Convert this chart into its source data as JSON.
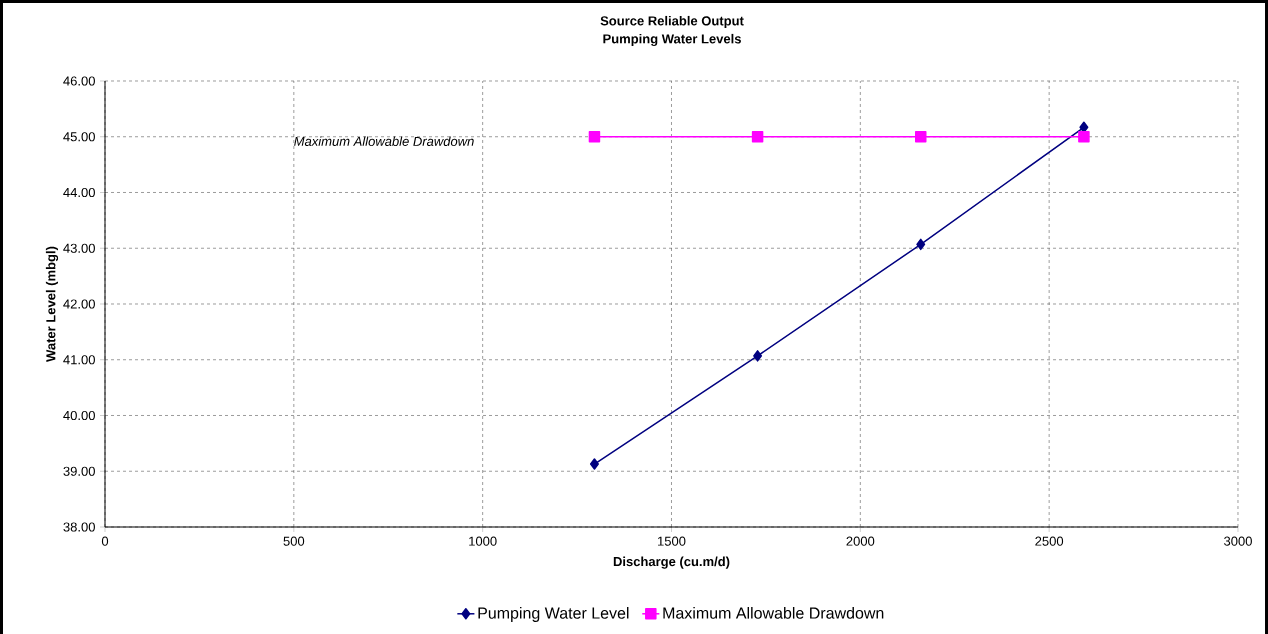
{
  "chart_data": {
    "type": "line",
    "title": "Source Reliable Output",
    "subtitle": "Pumping Water Levels",
    "xlabel": "Discharge (cu.m/d)",
    "ylabel": "Water Level (mbgl)",
    "x": [
      1296,
      1728,
      2160,
      2592
    ],
    "series": [
      {
        "name": "Pumping Water Level",
        "color": "#000080",
        "marker": "diamond",
        "values": [
          39.13,
          41.07,
          43.07,
          45.17
        ]
      },
      {
        "name": "Maximum Allowable Drawdown",
        "color": "#ff00ff",
        "marker": "square",
        "values": [
          45,
          45,
          45,
          45
        ]
      }
    ],
    "annotations": [
      "Maximum Allowable Drawdown"
    ],
    "xlim": [
      0,
      3000
    ],
    "xticks": [
      0,
      500,
      1000,
      1500,
      2000,
      2500,
      3000
    ],
    "ylim": [
      38,
      46
    ],
    "yticks": [
      {
        "value": 38,
        "label": "38.00"
      },
      {
        "value": 39,
        "label": "39.00"
      },
      {
        "value": 40,
        "label": "40.00"
      },
      {
        "value": 41,
        "label": "41.00"
      },
      {
        "value": 42,
        "label": "42.00"
      },
      {
        "value": 43,
        "label": "43.00"
      },
      {
        "value": 44,
        "label": "44.00"
      },
      {
        "value": 45,
        "label": "45.00"
      },
      {
        "value": 46,
        "label": "46.00"
      }
    ],
    "grid": true,
    "legend": "bottom",
    "line_style": "solid"
  }
}
